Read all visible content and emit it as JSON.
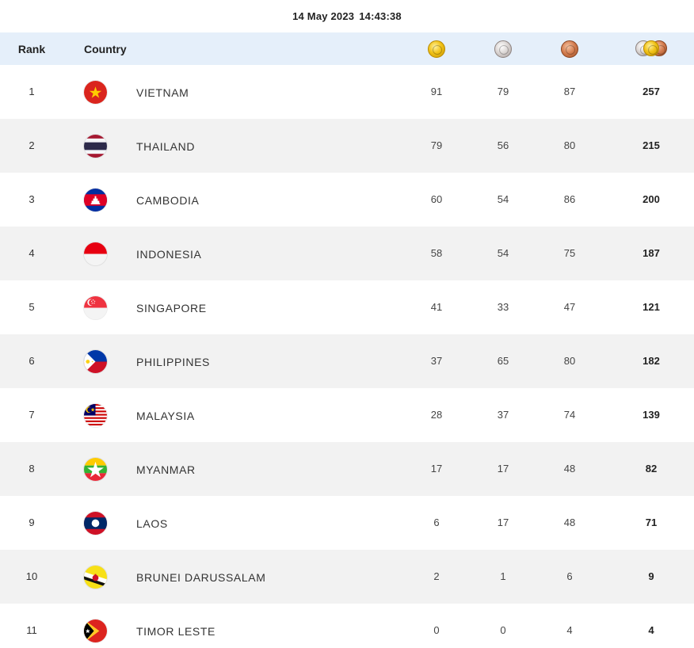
{
  "header": {
    "date": "14 May 2023",
    "time": "14:43:38",
    "rank_label": "Rank",
    "country_label": "Country"
  },
  "colors": {
    "header_bg": "#e5effa",
    "row_alt_bg": "#f2f2f2",
    "gold": "#f2c318",
    "silver": "#d8d2d0",
    "bronze": "#d27a4c"
  },
  "icons": {
    "gold": "gold-medal-icon",
    "silver": "silver-medal-icon",
    "bronze": "bronze-medal-icon",
    "total": "total-medals-icon"
  },
  "rows": [
    {
      "rank": "1",
      "country": "VIETNAM",
      "flag": "vietnam-flag-icon",
      "gold": "91",
      "silver": "79",
      "bronze": "87",
      "total": "257"
    },
    {
      "rank": "2",
      "country": "THAILAND",
      "flag": "thailand-flag-icon",
      "gold": "79",
      "silver": "56",
      "bronze": "80",
      "total": "215"
    },
    {
      "rank": "3",
      "country": "CAMBODIA",
      "flag": "cambodia-flag-icon",
      "gold": "60",
      "silver": "54",
      "bronze": "86",
      "total": "200"
    },
    {
      "rank": "4",
      "country": "INDONESIA",
      "flag": "indonesia-flag-icon",
      "gold": "58",
      "silver": "54",
      "bronze": "75",
      "total": "187"
    },
    {
      "rank": "5",
      "country": "SINGAPORE",
      "flag": "singapore-flag-icon",
      "gold": "41",
      "silver": "33",
      "bronze": "47",
      "total": "121"
    },
    {
      "rank": "6",
      "country": "PHILIPPINES",
      "flag": "philippines-flag-icon",
      "gold": "37",
      "silver": "65",
      "bronze": "80",
      "total": "182"
    },
    {
      "rank": "7",
      "country": "MALAYSIA",
      "flag": "malaysia-flag-icon",
      "gold": "28",
      "silver": "37",
      "bronze": "74",
      "total": "139"
    },
    {
      "rank": "8",
      "country": "MYANMAR",
      "flag": "myanmar-flag-icon",
      "gold": "17",
      "silver": "17",
      "bronze": "48",
      "total": "82"
    },
    {
      "rank": "9",
      "country": "LAOS",
      "flag": "laos-flag-icon",
      "gold": "6",
      "silver": "17",
      "bronze": "48",
      "total": "71"
    },
    {
      "rank": "10",
      "country": "BRUNEI DARUSSALAM",
      "flag": "brunei-flag-icon",
      "gold": "2",
      "silver": "1",
      "bronze": "6",
      "total": "9"
    },
    {
      "rank": "11",
      "country": "TIMOR LESTE",
      "flag": "timor-leste-flag-icon",
      "gold": "0",
      "silver": "0",
      "bronze": "4",
      "total": "4"
    }
  ]
}
